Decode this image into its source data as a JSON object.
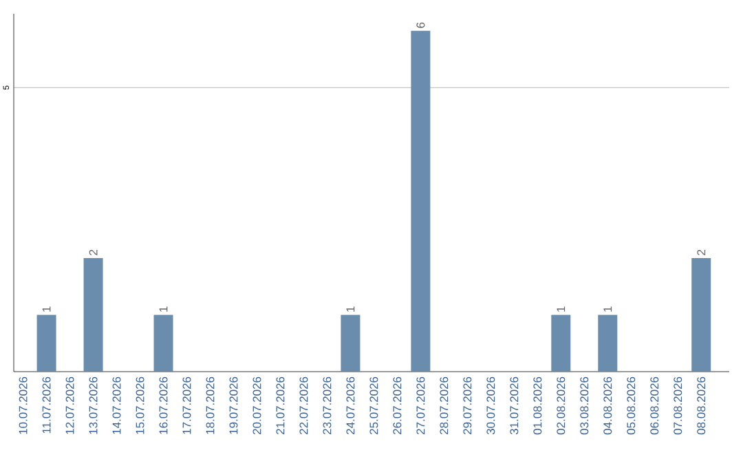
{
  "chart_data": {
    "type": "bar",
    "categories": [
      "10.07.2026",
      "11.07.2026",
      "12.07.2026",
      "13.07.2026",
      "14.07.2026",
      "15.07.2026",
      "16.07.2026",
      "17.07.2026",
      "18.07.2026",
      "19.07.2026",
      "20.07.2026",
      "21.07.2026",
      "22.07.2026",
      "23.07.2026",
      "24.07.2026",
      "25.07.2026",
      "26.07.2026",
      "27.07.2026",
      "28.07.2026",
      "29.07.2026",
      "30.07.2026",
      "31.07.2026",
      "01.08.2026",
      "02.08.2026",
      "03.08.2026",
      "04.08.2026",
      "05.08.2026",
      "06.08.2026",
      "07.08.2026",
      "08.08.2026"
    ],
    "values": [
      0,
      1,
      0,
      2,
      0,
      0,
      1,
      0,
      0,
      0,
      0,
      0,
      0,
      0,
      1,
      0,
      0,
      6,
      0,
      0,
      0,
      0,
      0,
      1,
      0,
      1,
      0,
      0,
      0,
      2
    ],
    "value_labels": [
      null,
      "1",
      null,
      "2",
      null,
      null,
      "1",
      null,
      null,
      null,
      null,
      null,
      null,
      null,
      "1",
      null,
      null,
      "6",
      null,
      null,
      null,
      null,
      null,
      "1",
      null,
      "1",
      null,
      null,
      null,
      "2"
    ],
    "color": "#6a8cad",
    "ylim": [
      0,
      6.3
    ],
    "yticks": [
      5
    ],
    "grid": "y"
  }
}
